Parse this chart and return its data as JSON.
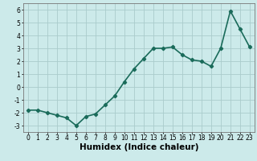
{
  "x": [
    0,
    1,
    2,
    3,
    4,
    5,
    6,
    7,
    8,
    9,
    10,
    11,
    12,
    13,
    14,
    15,
    16,
    17,
    18,
    19,
    20,
    21,
    22,
    23
  ],
  "y": [
    -1.8,
    -1.8,
    -2.0,
    -2.2,
    -2.4,
    -3.0,
    -2.3,
    -2.1,
    -1.4,
    -0.7,
    0.4,
    1.4,
    2.2,
    3.0,
    3.0,
    3.1,
    2.5,
    2.1,
    2.0,
    1.6,
    3.0,
    5.9,
    4.5,
    3.1
  ],
  "line_color": "#1a6b5a",
  "marker": "D",
  "marker_size": 2.2,
  "bg_color": "#cceaea",
  "grid_color": "#aacccc",
  "xlabel": "Humidex (Indice chaleur)",
  "xlim": [
    -0.5,
    23.5
  ],
  "ylim": [
    -3.5,
    6.5
  ],
  "yticks": [
    -3,
    -2,
    -1,
    0,
    1,
    2,
    3,
    4,
    5,
    6
  ],
  "xticks": [
    0,
    1,
    2,
    3,
    4,
    5,
    6,
    7,
    8,
    9,
    10,
    11,
    12,
    13,
    14,
    15,
    16,
    17,
    18,
    19,
    20,
    21,
    22,
    23
  ],
  "xtick_labels": [
    "0",
    "1",
    "2",
    "3",
    "4",
    "5",
    "6",
    "7",
    "8",
    "9",
    "10",
    "11",
    "12",
    "13",
    "14",
    "15",
    "16",
    "17",
    "18",
    "19",
    "20",
    "21",
    "22",
    "23"
  ],
  "xlabel_fontsize": 7.5,
  "tick_fontsize": 5.5,
  "line_width": 1.2
}
